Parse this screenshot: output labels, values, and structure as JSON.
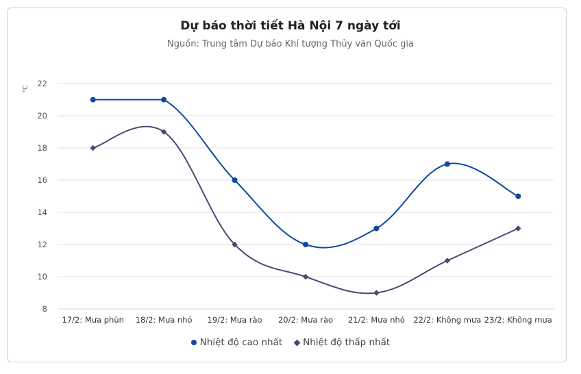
{
  "title": "Dự báo thời tiết Hà Nội 7 ngày tới",
  "subtitle": "Nguồn: Trung tâm Dự báo Khí tượng Thủy văn Quốc gia",
  "y_unit": "°C",
  "legend": {
    "high_label": "Nhiệt độ cao nhất",
    "low_label": "Nhiệt độ thấp nhất"
  },
  "colors": {
    "high": "#0E48A0",
    "low": "#4B4773",
    "grid": "#e3e3e3",
    "axis": "#c8d3e8"
  },
  "chart_data": {
    "type": "line",
    "title": "Dự báo thời tiết Hà Nội 7 ngày tới",
    "subtitle": "Nguồn: Trung tâm Dự báo Khí tượng Thủy văn Quốc gia",
    "xlabel": "",
    "ylabel": "°C",
    "ylim": [
      8,
      22
    ],
    "yticks": [
      8,
      10,
      12,
      14,
      16,
      18,
      20,
      22
    ],
    "grid": true,
    "legend_position": "bottom",
    "smooth": true,
    "categories": [
      "17/2: Mưa phùn",
      "18/2: Mưa nhỏ",
      "19/2: Mưa rào",
      "20/2: Mưa rào",
      "21/2: Mưa nhỏ",
      "22/2: Không mưa",
      "23/2: Không mưa"
    ],
    "series": [
      {
        "name": "Nhiệt độ cao nhất",
        "marker": "circle",
        "values": [
          21,
          21,
          16,
          12,
          13,
          17,
          15
        ]
      },
      {
        "name": "Nhiệt độ thấp nhất",
        "marker": "diamond",
        "values": [
          18,
          19,
          12,
          10,
          9,
          11,
          13
        ]
      }
    ]
  }
}
